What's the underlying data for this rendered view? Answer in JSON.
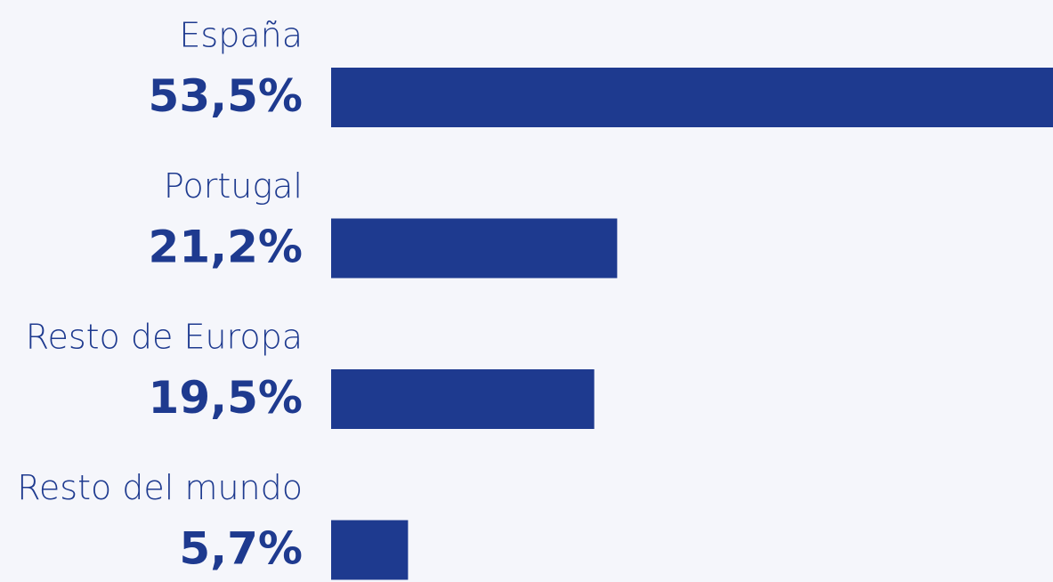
{
  "chart_data": {
    "type": "bar",
    "orientation": "horizontal",
    "categories": [
      "España",
      "Portugal",
      "Resto de Europa",
      "Resto del mundo"
    ],
    "values": [
      53.5,
      21.2,
      19.5,
      5.7
    ],
    "value_labels": [
      "53,5%",
      "21,2%",
      "19,5%",
      "5,7%"
    ],
    "color": "#1e3a8f"
  }
}
